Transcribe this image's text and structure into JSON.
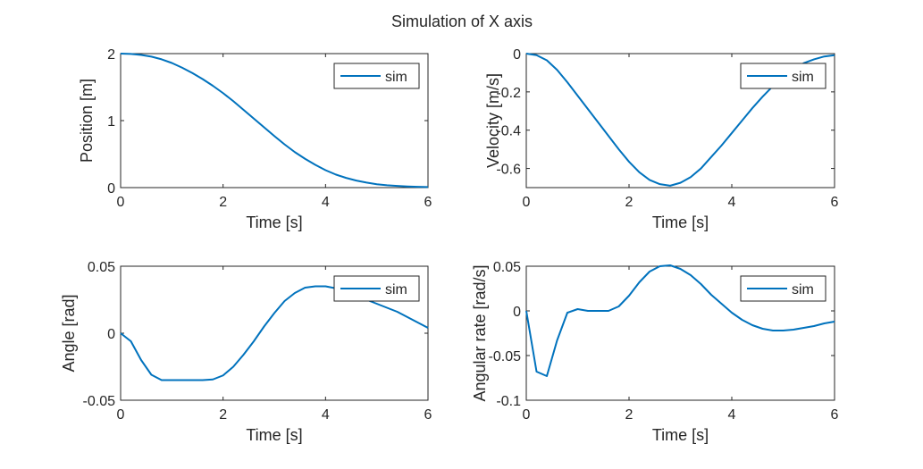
{
  "figure": {
    "title": "Simulation of X axis"
  },
  "chart_data": [
    {
      "type": "line",
      "xlabel": "Time [s]",
      "ylabel": "Position [m]",
      "xlim": [
        0,
        6
      ],
      "ylim": [
        0,
        2
      ],
      "xticks": [
        0,
        2,
        4,
        6
      ],
      "yticks": [
        0,
        1,
        2
      ],
      "x_tick_labels": [
        "0",
        "2",
        "4",
        "6"
      ],
      "y_tick_labels": [
        "0",
        "1",
        "2"
      ],
      "legend": "top-right",
      "grid": false,
      "color": "#0072BD",
      "series": [
        {
          "name": "sim",
          "x": [
            0,
            0.2,
            0.4,
            0.6,
            0.8,
            1.0,
            1.2,
            1.4,
            1.6,
            1.8,
            2.0,
            2.2,
            2.4,
            2.6,
            2.8,
            3.0,
            3.2,
            3.4,
            3.6,
            3.8,
            4.0,
            4.2,
            4.4,
            4.6,
            4.8,
            5.0,
            5.2,
            5.4,
            5.6,
            5.8,
            6.0
          ],
          "y": [
            2.0,
            1.995,
            1.98,
            1.955,
            1.915,
            1.86,
            1.79,
            1.71,
            1.62,
            1.52,
            1.41,
            1.29,
            1.16,
            1.03,
            0.9,
            0.77,
            0.645,
            0.53,
            0.43,
            0.34,
            0.26,
            0.195,
            0.145,
            0.105,
            0.075,
            0.05,
            0.035,
            0.025,
            0.017,
            0.012,
            0.008
          ]
        }
      ]
    },
    {
      "type": "line",
      "xlabel": "Time [s]",
      "ylabel": "Velocity [m/s]",
      "xlim": [
        0,
        6
      ],
      "ylim": [
        -0.7,
        0
      ],
      "xticks": [
        0,
        2,
        4,
        6
      ],
      "yticks": [
        -0.6,
        -0.4,
        -0.2,
        0
      ],
      "x_tick_labels": [
        "0",
        "2",
        "4",
        "6"
      ],
      "y_tick_labels": [
        "-0.6",
        "-0.4",
        "-0.2",
        "0"
      ],
      "legend": "top-right",
      "grid": false,
      "color": "#0072BD",
      "series": [
        {
          "name": "sim",
          "x": [
            0,
            0.2,
            0.4,
            0.6,
            0.8,
            1.0,
            1.2,
            1.4,
            1.6,
            1.8,
            2.0,
            2.2,
            2.4,
            2.6,
            2.8,
            3.0,
            3.2,
            3.4,
            3.6,
            3.8,
            4.0,
            4.2,
            4.4,
            4.6,
            4.8,
            5.0,
            5.2,
            5.4,
            5.6,
            5.8,
            6.0
          ],
          "y": [
            0,
            -0.008,
            -0.035,
            -0.085,
            -0.15,
            -0.22,
            -0.29,
            -0.36,
            -0.43,
            -0.5,
            -0.565,
            -0.62,
            -0.66,
            -0.682,
            -0.69,
            -0.675,
            -0.645,
            -0.6,
            -0.54,
            -0.48,
            -0.415,
            -0.35,
            -0.285,
            -0.225,
            -0.17,
            -0.12,
            -0.08,
            -0.05,
            -0.03,
            -0.015,
            -0.008
          ]
        }
      ]
    },
    {
      "type": "line",
      "xlabel": "Time [s]",
      "ylabel": "Angle [rad]",
      "xlim": [
        0,
        6
      ],
      "ylim": [
        -0.05,
        0.05
      ],
      "xticks": [
        0,
        2,
        4,
        6
      ],
      "yticks": [
        -0.05,
        0,
        0.05
      ],
      "x_tick_labels": [
        "0",
        "2",
        "4",
        "6"
      ],
      "y_tick_labels": [
        "-0.05",
        "0",
        "0.05"
      ],
      "legend": "top-right",
      "grid": false,
      "color": "#0072BD",
      "series": [
        {
          "name": "sim",
          "x": [
            0,
            0.2,
            0.4,
            0.6,
            0.8,
            1.0,
            1.2,
            1.4,
            1.6,
            1.8,
            2.0,
            2.2,
            2.4,
            2.6,
            2.8,
            3.0,
            3.2,
            3.4,
            3.6,
            3.8,
            4.0,
            4.2,
            4.4,
            4.6,
            4.8,
            5.0,
            5.2,
            5.4,
            5.6,
            5.8,
            6.0
          ],
          "y": [
            0,
            -0.006,
            -0.02,
            -0.031,
            -0.035,
            -0.035,
            -0.035,
            -0.035,
            -0.035,
            -0.0345,
            -0.0315,
            -0.025,
            -0.016,
            -0.006,
            0.005,
            0.015,
            0.024,
            0.03,
            0.034,
            0.035,
            0.035,
            0.0335,
            0.031,
            0.028,
            0.025,
            0.022,
            0.019,
            0.016,
            0.012,
            0.008,
            0.004
          ]
        }
      ]
    },
    {
      "type": "line",
      "xlabel": "Time [s]",
      "ylabel": "Angular rate [rad/s]",
      "xlim": [
        0,
        6
      ],
      "ylim": [
        -0.1,
        0.05
      ],
      "xticks": [
        0,
        2,
        4,
        6
      ],
      "yticks": [
        -0.1,
        -0.05,
        0,
        0.05
      ],
      "x_tick_labels": [
        "0",
        "2",
        "4",
        "6"
      ],
      "y_tick_labels": [
        "-0.1",
        "-0.05",
        "0",
        "0.05"
      ],
      "legend": "top-right",
      "grid": false,
      "color": "#0072BD",
      "series": [
        {
          "name": "sim",
          "x": [
            0,
            0.2,
            0.4,
            0.6,
            0.8,
            1.0,
            1.2,
            1.4,
            1.6,
            1.8,
            2.0,
            2.2,
            2.4,
            2.6,
            2.8,
            3.0,
            3.2,
            3.4,
            3.6,
            3.8,
            4.0,
            4.2,
            4.4,
            4.6,
            4.8,
            5.0,
            5.2,
            5.4,
            5.6,
            5.8,
            6.0
          ],
          "y": [
            0,
            -0.068,
            -0.073,
            -0.033,
            -0.002,
            0.002,
            0.0,
            0.0,
            0.0,
            0.005,
            0.017,
            0.032,
            0.044,
            0.05,
            0.051,
            0.047,
            0.04,
            0.03,
            0.018,
            0.008,
            -0.002,
            -0.01,
            -0.016,
            -0.02,
            -0.022,
            -0.022,
            -0.021,
            -0.019,
            -0.017,
            -0.014,
            -0.012
          ]
        }
      ]
    }
  ]
}
